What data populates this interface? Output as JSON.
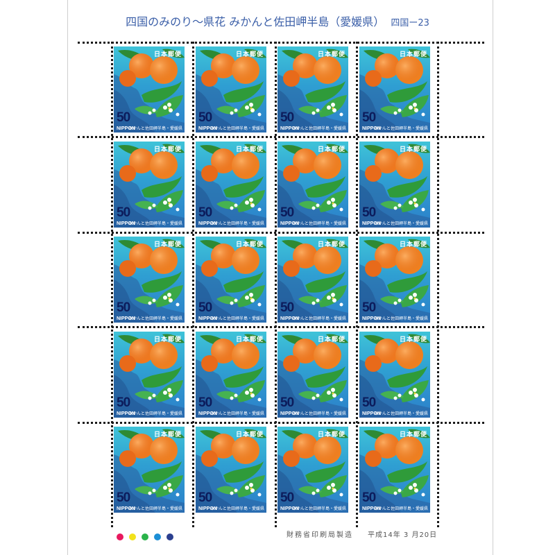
{
  "sheet": {
    "title_main": "四国のみのり〜県花 みかんと佐田岬半島（愛媛県）",
    "title_series": "四国ー23",
    "printer": "財務省印刷局製造",
    "issue_date": "平成14年 3 月20日"
  },
  "stamp": {
    "country_jp": "日本郵便",
    "value": "50",
    "country_en": "NIPPON",
    "caption": "みかんと佐田岬半島・愛媛県",
    "rows": 5,
    "cols": 4
  },
  "color_marks": [
    "#e8195e",
    "#f2e21b",
    "#2bb34a",
    "#1c8fd6",
    "#2b3f8f"
  ]
}
